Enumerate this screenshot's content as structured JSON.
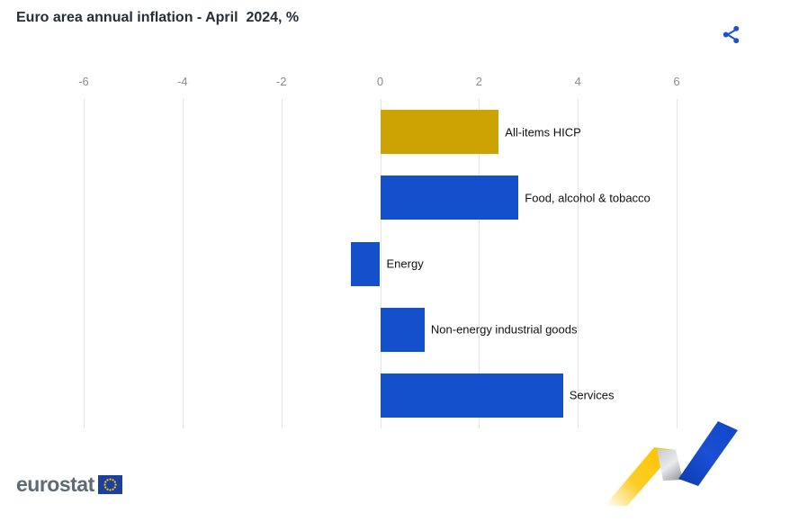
{
  "header": {
    "title": "Euro area annual inflation - April  2024, %",
    "share_button": {
      "icon": "share-icon",
      "color": "#1b52d1"
    }
  },
  "chart_data": {
    "type": "bar",
    "orientation": "horizontal",
    "title": "Euro area annual inflation - April  2024, %",
    "unit": "%",
    "categories": [
      "All-items HICP",
      "Food, alcohol & tobacco",
      "Energy",
      "Non-energy industrial goods",
      "Services"
    ],
    "values": [
      2.4,
      2.8,
      -0.6,
      0.9,
      3.7
    ],
    "colors": [
      "#CDA303",
      "#1450CC",
      "#1450CC",
      "#1450CC",
      "#1450CC"
    ],
    "x_ticks": [
      -6,
      -4,
      -2,
      0,
      2,
      4,
      6
    ],
    "xlim": [
      -6,
      6
    ],
    "xlabel": "",
    "ylabel": "",
    "grid": true,
    "gridline_color": "#e4e4e7",
    "tick_label_color": "#8c8c8c",
    "bar_label_color": "#101010",
    "legend": "none",
    "accent_color_highlight": "#CDA303",
    "accent_color_default": "#1450CC"
  },
  "footer": {
    "logo_text": "eurostat",
    "logo_text_color": "#5f6a73",
    "flag_colors": {
      "field": "#1d3f9e",
      "stars": "#ffcc00"
    },
    "decoration": {
      "name": "trend-arrow-graphic",
      "yellow": "#fcc400",
      "gray": "#8d9298",
      "blue": "#1347c6"
    }
  }
}
